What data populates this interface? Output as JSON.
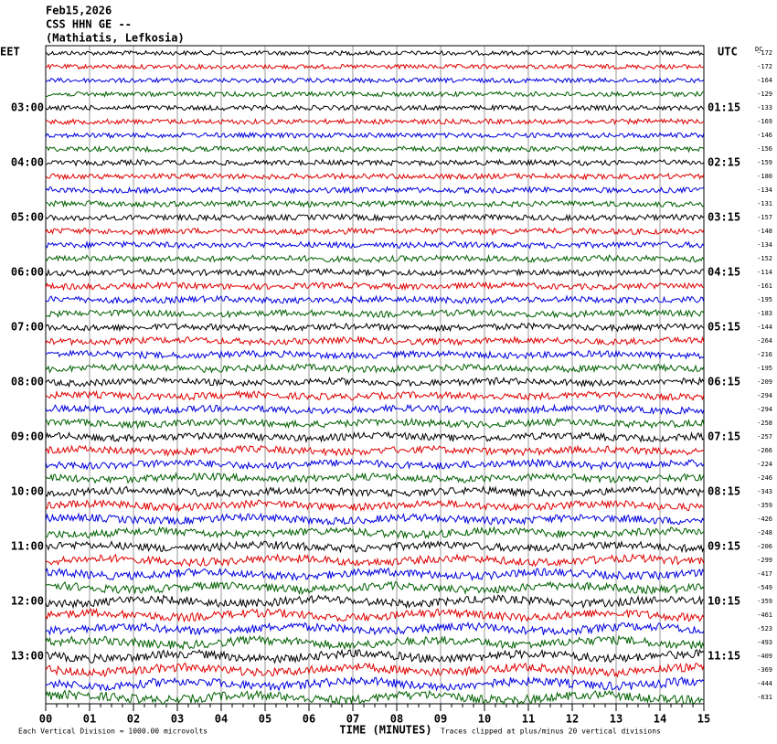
{
  "chart_data": {
    "type": "helicorder",
    "title_lines": [
      "Feb15,2026",
      "CSS HHN GE --",
      "(Mathiatis, Lefkosia)"
    ],
    "left_zone": "EET",
    "right_zone": "UTC",
    "dc_header": "DC",
    "left_labels": [
      null,
      null,
      null,
      null,
      "03:00",
      null,
      null,
      null,
      "04:00",
      null,
      null,
      null,
      "05:00",
      null,
      null,
      null,
      "06:00",
      null,
      null,
      null,
      "07:00",
      null,
      null,
      null,
      "08:00",
      null,
      null,
      null,
      "09:00",
      null,
      null,
      null,
      "10:00",
      null,
      null,
      null,
      "11:00",
      null,
      null,
      null,
      "12:00",
      null,
      null,
      null,
      "13:00",
      null,
      null,
      null
    ],
    "right_labels": [
      null,
      null,
      null,
      null,
      "01:15",
      null,
      null,
      null,
      "02:15",
      null,
      null,
      null,
      "03:15",
      null,
      null,
      null,
      "04:15",
      null,
      null,
      null,
      "05:15",
      null,
      null,
      null,
      "06:15",
      null,
      null,
      null,
      "07:15",
      null,
      null,
      null,
      "08:15",
      null,
      null,
      null,
      "09:15",
      null,
      null,
      null,
      "10:15",
      null,
      null,
      null,
      "11:15",
      null,
      null,
      null
    ],
    "dc": [
      -172,
      -172,
      -164,
      -129,
      -133,
      -169,
      -146,
      -156,
      -159,
      -180,
      -134,
      -131,
      -157,
      -148,
      -134,
      -152,
      -114,
      -161,
      -195,
      -183,
      -144,
      -264,
      -216,
      -195,
      -209,
      -294,
      -294,
      -258,
      -257,
      -266,
      -224,
      -246,
      -343,
      -359,
      -426,
      -248,
      -206,
      -299,
      -417,
      -549,
      -359,
      -461,
      -523,
      -493,
      -409,
      -369,
      -444,
      -631
    ],
    "trace_colors": [
      "#000000",
      "#e00000",
      "#0000e0",
      "#006000"
    ],
    "xlim": [
      0,
      15
    ],
    "xticks": [
      {
        "value": 0,
        "label": "00"
      },
      {
        "value": 1,
        "label": "01"
      },
      {
        "value": 2,
        "label": "02"
      },
      {
        "value": 3,
        "label": "03"
      },
      {
        "value": 4,
        "label": "04"
      },
      {
        "value": 5,
        "label": "05"
      },
      {
        "value": 6,
        "label": "06"
      },
      {
        "value": 7,
        "label": "07"
      },
      {
        "value": 8,
        "label": "08"
      },
      {
        "value": 9,
        "label": "09"
      },
      10,
      11,
      12,
      13,
      14,
      15
    ],
    "xlabel": "TIME (MINUTES)",
    "scale_note": "Each Vertical Division = 1000.00 microvolts",
    "clip_note": "Traces clipped at plus/minus 20 vertical divisions",
    "grid": true
  }
}
